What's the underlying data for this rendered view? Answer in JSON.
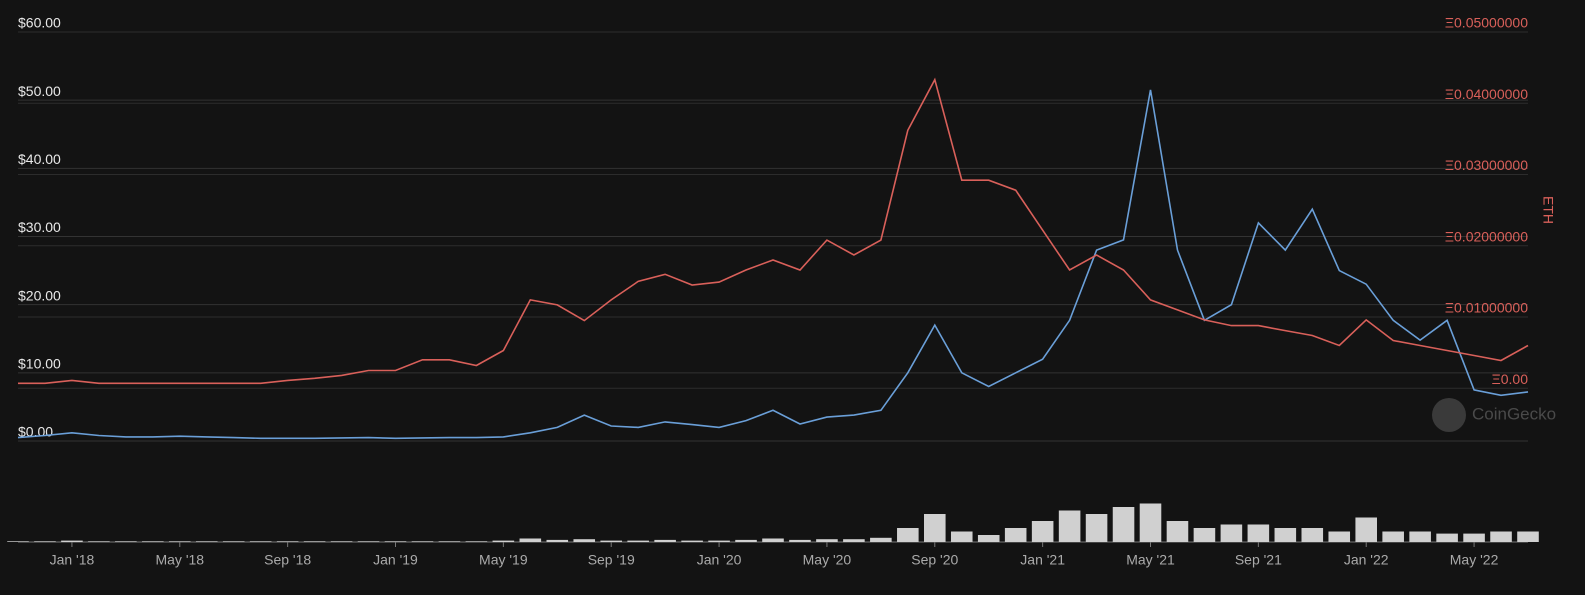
{
  "chart_data": {
    "type": "line",
    "x": [
      "2017-11",
      "2017-12",
      "2018-01",
      "2018-02",
      "2018-03",
      "2018-04",
      "2018-05",
      "2018-06",
      "2018-07",
      "2018-08",
      "2018-09",
      "2018-10",
      "2018-11",
      "2018-12",
      "2019-01",
      "2019-02",
      "2019-03",
      "2019-04",
      "2019-05",
      "2019-06",
      "2019-07",
      "2019-08",
      "2019-09",
      "2019-10",
      "2019-11",
      "2019-12",
      "2020-01",
      "2020-02",
      "2020-03",
      "2020-04",
      "2020-05",
      "2020-06",
      "2020-07",
      "2020-08",
      "2020-09",
      "2020-10",
      "2020-11",
      "2020-12",
      "2021-01",
      "2021-02",
      "2021-03",
      "2021-04",
      "2021-05",
      "2021-06",
      "2021-07",
      "2021-08",
      "2021-09",
      "2021-10",
      "2021-11",
      "2021-12",
      "2022-01",
      "2022-02",
      "2022-03",
      "2022-04",
      "2022-05",
      "2022-06",
      "2022-07"
    ],
    "series": [
      {
        "color": "#6a9fd8",
        "values": [
          0.5,
          0.8,
          1.2,
          0.8,
          0.6,
          0.6,
          0.7,
          0.6,
          0.5,
          0.4,
          0.4,
          0.4,
          0.45,
          0.5,
          0.4,
          0.45,
          0.5,
          0.5,
          0.6,
          1.2,
          2.0,
          3.8,
          2.2,
          2.0,
          2.8,
          2.4,
          2.0,
          3.0,
          4.5,
          2.5,
          3.5,
          3.8,
          4.5,
          10,
          17,
          10,
          8,
          10,
          12,
          17.7,
          28,
          29.5,
          51.5,
          28,
          17.7,
          20,
          32,
          28,
          34,
          25,
          23,
          17.7,
          14.8,
          17.7,
          7.5,
          6.7,
          7.2
        ]
      },
      {
        "color": "#d9605a",
        "axis": "y2",
        "values": [
          0.0007,
          0.0007,
          0.0011,
          0.0007,
          0.0007,
          0.0007,
          0.0007,
          0.0007,
          0.0007,
          0.0007,
          0.0011,
          0.0014,
          0.0018,
          0.0025,
          0.0025,
          0.004,
          0.004,
          0.0032,
          0.0053,
          0.0124,
          0.0117,
          0.0095,
          0.0124,
          0.015,
          0.016,
          0.0145,
          0.0149,
          0.0166,
          0.018,
          0.0166,
          0.0208,
          0.0187,
          0.0208,
          0.0362,
          0.0433,
          0.0292,
          0.0292,
          0.0278,
          0.0222,
          0.0166,
          0.0187,
          0.0166,
          0.0124,
          0.011,
          0.0096,
          0.0088,
          0.0088,
          0.0081,
          0.0074,
          0.006,
          0.0096,
          0.0067,
          0.006,
          0.0053,
          0.0046,
          0.0039,
          0.006
        ]
      },
      {
        "color": "#d0d0d0",
        "axis": "y3",
        "values": [
          1,
          1,
          2,
          1,
          1,
          1,
          1,
          1,
          1,
          1,
          1,
          1,
          1,
          1,
          1,
          1,
          1,
          1,
          2,
          5,
          3,
          4,
          2,
          2,
          3,
          2,
          2,
          3,
          5,
          3,
          4,
          4,
          6,
          20,
          40,
          15,
          10,
          20,
          30,
          45,
          40,
          50,
          55,
          30,
          20,
          25,
          25,
          20,
          20,
          15,
          35,
          15,
          15,
          12,
          12,
          15,
          15
        ]
      }
    ],
    "xlim": [
      "2017-11",
      "2022-07"
    ],
    "xticks": [
      {
        "value": "2018-01",
        "label": "Jan '18"
      },
      {
        "value": "2018-05",
        "label": "May '18"
      },
      {
        "value": "2018-09",
        "label": "Sep '18"
      },
      {
        "value": "2019-01",
        "label": "Jan '19"
      },
      {
        "value": "2019-05",
        "label": "May '19"
      },
      {
        "value": "2019-09",
        "label": "Sep '19"
      },
      {
        "value": "2020-01",
        "label": "Jan '20"
      },
      {
        "value": "2020-05",
        "label": "May '20"
      },
      {
        "value": "2020-09",
        "label": "Sep '20"
      },
      {
        "value": "2021-01",
        "label": "Jan '21"
      },
      {
        "value": "2021-05",
        "label": "May '21"
      },
      {
        "value": "2021-09",
        "label": "Sep '21"
      },
      {
        "value": "2022-01",
        "label": "Jan '22"
      },
      {
        "value": "2022-05",
        "label": "May '22"
      }
    ],
    "ylim": [
      0,
      60
    ],
    "yticks": [
      {
        "value": 0,
        "label": "$0.00"
      },
      {
        "value": 10,
        "label": "$10.00"
      },
      {
        "value": 20,
        "label": "$20.00"
      },
      {
        "value": 30,
        "label": "$30.00"
      },
      {
        "value": 40,
        "label": "$40.00"
      },
      {
        "value": 50,
        "label": "$50.00"
      },
      {
        "value": 60,
        "label": "$60.00"
      }
    ],
    "y2lim": [
      -0.0074,
      0.05
    ],
    "y2ticks": [
      {
        "value": 0,
        "label": "Ξ0.00"
      },
      {
        "value": 0.01,
        "label": "Ξ0.01000000"
      },
      {
        "value": 0.02,
        "label": "Ξ0.02000000"
      },
      {
        "value": 0.03,
        "label": "Ξ0.03000000"
      },
      {
        "value": 0.04,
        "label": "Ξ0.04000000"
      },
      {
        "value": 0.05,
        "label": "Ξ0.05000000"
      }
    ],
    "y3lim": [
      0,
      100
    ],
    "y2label": "ETH",
    "grid": true,
    "watermark": "CoinGecko"
  }
}
